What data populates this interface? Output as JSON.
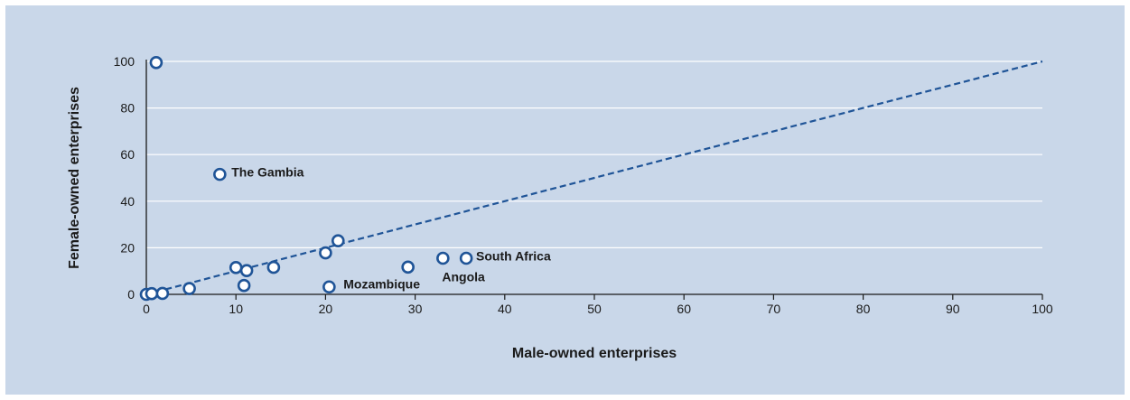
{
  "colors": {
    "panel": "#c9d7e9",
    "grid": "#ffffff",
    "axis": "#1a1a1a",
    "marker_stroke": "#1f5497",
    "marker_fill": "#ffffff",
    "trend": "#1f5497"
  },
  "chart_data": {
    "type": "scatter",
    "title": "",
    "xlabel": "Male-owned enterprises",
    "ylabel": "Female-owned enterprises",
    "xlim": [
      0,
      100
    ],
    "ylim": [
      0,
      100
    ],
    "x_ticks": [
      0,
      10,
      20,
      30,
      40,
      50,
      60,
      70,
      80,
      90,
      100
    ],
    "y_ticks": [
      0,
      20,
      40,
      60,
      80,
      100
    ],
    "grid": "horizontal",
    "reference_line": {
      "from": [
        0,
        0
      ],
      "to": [
        100,
        100
      ],
      "style": "dashed"
    },
    "points": [
      {
        "x": 0.0,
        "y": 0.0
      },
      {
        "x": 0.6,
        "y": 0.3
      },
      {
        "x": 1.8,
        "y": 0.4
      },
      {
        "x": 1.1,
        "y": 99.5
      },
      {
        "x": 4.8,
        "y": 2.5
      },
      {
        "x": 8.2,
        "y": 51.5
      },
      {
        "x": 10.0,
        "y": 11.5
      },
      {
        "x": 11.2,
        "y": 10.2
      },
      {
        "x": 10.9,
        "y": 3.8
      },
      {
        "x": 14.2,
        "y": 11.6
      },
      {
        "x": 20.0,
        "y": 17.8
      },
      {
        "x": 21.4,
        "y": 23.0
      },
      {
        "x": 20.4,
        "y": 3.2
      },
      {
        "x": 29.2,
        "y": 11.7
      },
      {
        "x": 33.1,
        "y": 15.5
      },
      {
        "x": 35.7,
        "y": 15.5
      }
    ],
    "annotations": [
      {
        "text": "The Gambia",
        "x": 9.5,
        "y": 52.5,
        "anchor": "start"
      },
      {
        "text": "South Africa",
        "x": 36.8,
        "y": 16.5,
        "anchor": "start"
      },
      {
        "text": "Angola",
        "x": 33.0,
        "y": 7.5,
        "anchor": "start"
      },
      {
        "text": "Mozambique",
        "x": 22.0,
        "y": 4.5,
        "anchor": "start"
      }
    ]
  }
}
